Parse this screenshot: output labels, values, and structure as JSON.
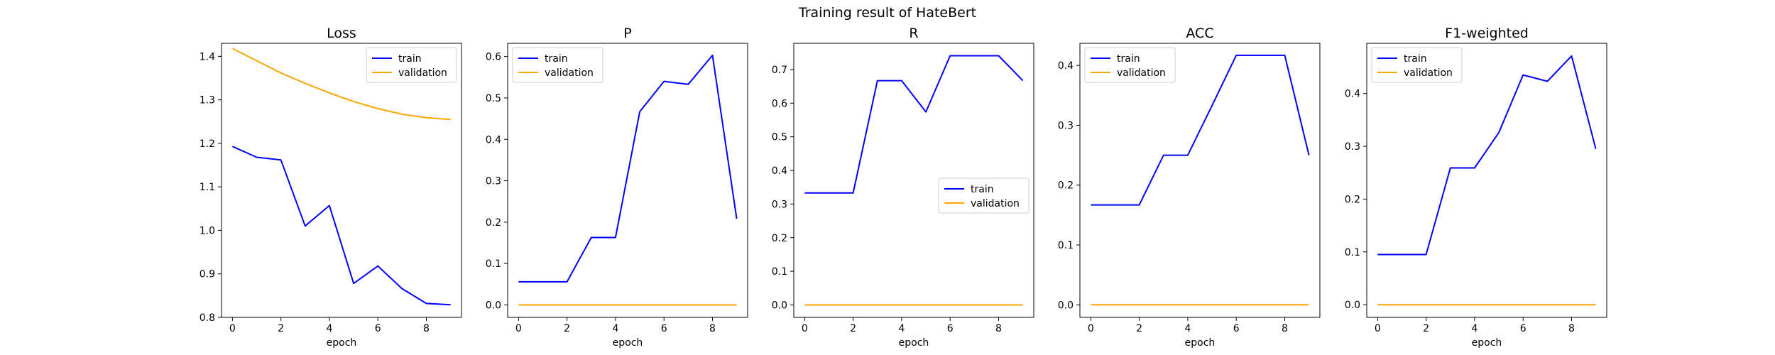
{
  "figure": {
    "title": "Training result of HateBert"
  },
  "colors": {
    "train": "#0000ff",
    "validation": "#ffa500"
  },
  "chart_data": [
    {
      "type": "line",
      "title": "Loss",
      "xlabel": "epoch",
      "ylabel": "",
      "x": [
        0,
        1,
        2,
        3,
        4,
        5,
        6,
        7,
        8,
        9
      ],
      "xticks": [
        0,
        2,
        4,
        6,
        8
      ],
      "xlim": [
        -0.45,
        9.45
      ],
      "ylim": [
        0.8,
        1.43
      ],
      "yticks": [
        0.8,
        0.9,
        1.0,
        1.1,
        1.2,
        1.3,
        1.4
      ],
      "ytick_labels": [
        "0.8",
        "0.9",
        "1.0",
        "1.1",
        "1.2",
        "1.3",
        "1.4"
      ],
      "legend_position": "top-right",
      "series": [
        {
          "name": "train",
          "color": "#0000ff",
          "values": [
            1.193,
            1.168,
            1.162,
            1.01,
            1.057,
            0.878,
            0.918,
            0.866,
            0.832,
            0.829
          ]
        },
        {
          "name": "validation",
          "color": "#ffa500",
          "values": [
            1.418,
            1.39,
            1.362,
            1.338,
            1.316,
            1.296,
            1.28,
            1.267,
            1.259,
            1.255
          ]
        }
      ]
    },
    {
      "type": "line",
      "title": "P",
      "xlabel": "epoch",
      "ylabel": "",
      "x": [
        0,
        1,
        2,
        3,
        4,
        5,
        6,
        7,
        8,
        9
      ],
      "xticks": [
        0,
        2,
        4,
        6,
        8
      ],
      "xlim": [
        -0.45,
        9.45
      ],
      "ylim": [
        -0.03,
        0.632
      ],
      "yticks": [
        0.0,
        0.1,
        0.2,
        0.3,
        0.4,
        0.5,
        0.6
      ],
      "ytick_labels": [
        "0.0",
        "0.1",
        "0.2",
        "0.3",
        "0.4",
        "0.5",
        "0.6"
      ],
      "legend_position": "top-left",
      "series": [
        {
          "name": "train",
          "color": "#0000ff",
          "values": [
            0.056,
            0.056,
            0.056,
            0.163,
            0.163,
            0.467,
            0.54,
            0.533,
            0.603,
            0.208
          ]
        },
        {
          "name": "validation",
          "color": "#ffa500",
          "values": [
            0,
            0,
            0,
            0,
            0,
            0,
            0,
            0,
            0,
            0
          ]
        }
      ]
    },
    {
      "type": "line",
      "title": "R",
      "xlabel": "epoch",
      "ylabel": "",
      "x": [
        0,
        1,
        2,
        3,
        4,
        5,
        6,
        7,
        8,
        9
      ],
      "xticks": [
        0,
        2,
        4,
        6,
        8
      ],
      "xlim": [
        -0.45,
        9.45
      ],
      "ylim": [
        -0.037,
        0.778
      ],
      "yticks": [
        0.0,
        0.1,
        0.2,
        0.3,
        0.4,
        0.5,
        0.6,
        0.7
      ],
      "ytick_labels": [
        "0.0",
        "0.1",
        "0.2",
        "0.3",
        "0.4",
        "0.5",
        "0.6",
        "0.7"
      ],
      "legend_position": "center-right",
      "series": [
        {
          "name": "train",
          "color": "#0000ff",
          "values": [
            0.333,
            0.333,
            0.333,
            0.667,
            0.667,
            0.574,
            0.741,
            0.741,
            0.741,
            0.667
          ]
        },
        {
          "name": "validation",
          "color": "#ffa500",
          "values": [
            0,
            0,
            0,
            0,
            0,
            0,
            0,
            0,
            0,
            0
          ]
        }
      ]
    },
    {
      "type": "line",
      "title": "ACC",
      "xlabel": "epoch",
      "ylabel": "",
      "x": [
        0,
        1,
        2,
        3,
        4,
        5,
        6,
        7,
        8,
        9
      ],
      "xticks": [
        0,
        2,
        4,
        6,
        8
      ],
      "xlim": [
        -0.45,
        9.45
      ],
      "ylim": [
        -0.021,
        0.437
      ],
      "yticks": [
        0.0,
        0.1,
        0.2,
        0.3,
        0.4
      ],
      "ytick_labels": [
        "0.0",
        "0.1",
        "0.2",
        "0.3",
        "0.4"
      ],
      "legend_position": "top-left",
      "series": [
        {
          "name": "train",
          "color": "#0000ff",
          "values": [
            0.167,
            0.167,
            0.167,
            0.25,
            0.25,
            0.333,
            0.417,
            0.417,
            0.417,
            0.25
          ]
        },
        {
          "name": "validation",
          "color": "#ffa500",
          "values": [
            0,
            0,
            0,
            0,
            0,
            0,
            0,
            0,
            0,
            0
          ]
        }
      ]
    },
    {
      "type": "line",
      "title": "F1-weighted",
      "xlabel": "epoch",
      "ylabel": "",
      "x": [
        0,
        1,
        2,
        3,
        4,
        5,
        6,
        7,
        8,
        9
      ],
      "xticks": [
        0,
        2,
        4,
        6,
        8
      ],
      "xlim": [
        -0.45,
        9.45
      ],
      "ylim": [
        -0.024,
        0.495
      ],
      "yticks": [
        0.0,
        0.1,
        0.2,
        0.3,
        0.4
      ],
      "ytick_labels": [
        "0.0",
        "0.1",
        "0.2",
        "0.3",
        "0.4"
      ],
      "legend_position": "top-left",
      "series": [
        {
          "name": "train",
          "color": "#0000ff",
          "values": [
            0.095,
            0.095,
            0.095,
            0.259,
            0.259,
            0.326,
            0.435,
            0.423,
            0.471,
            0.295
          ]
        },
        {
          "name": "validation",
          "color": "#ffa500",
          "values": [
            0,
            0,
            0,
            0,
            0,
            0,
            0,
            0,
            0,
            0
          ]
        }
      ]
    }
  ]
}
